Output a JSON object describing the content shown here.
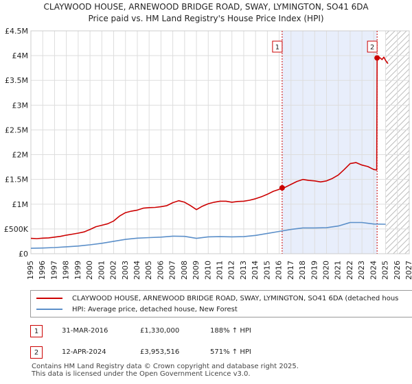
{
  "title_line1": "CLAYWOOD HOUSE, ARNEWOOD BRIDGE ROAD, SWAY, LYMINGTON, SO41 6DA",
  "title_line2": "Price paid vs. HM Land Registry's House Price Index (HPI)",
  "colors": {
    "property_line": "#cc0000",
    "hpi_line": "#5b8fc9",
    "shade": "#e8eefb",
    "grid": "#dddddd"
  },
  "legend": {
    "property_label": "CLAYWOOD HOUSE, ARNEWOOD BRIDGE ROAD, SWAY, LYMINGTON, SO41 6DA (detached hous",
    "hpi_label": "HPI: Average price, detached house, New Forest"
  },
  "transactions": [
    {
      "num": "1",
      "date": "31-MAR-2016",
      "price": "£1,330,000",
      "hpi": "188% ↑ HPI"
    },
    {
      "num": "2",
      "date": "12-APR-2024",
      "price": "£3,953,516",
      "hpi": "571% ↑ HPI"
    }
  ],
  "footer_line1": "Contains HM Land Registry data © Crown copyright and database right 2025.",
  "footer_line2": "This data is licensed under the Open Government Licence v3.0.",
  "chart_data": {
    "type": "line",
    "title": "CLAYWOOD HOUSE, ARNEWOOD BRIDGE ROAD, SWAY, LYMINGTON, SO41 6DA",
    "subtitle": "Price paid vs. HM Land Registry's House Price Index (HPI)",
    "xlabel": "",
    "ylabel": "",
    "xlim": [
      1995,
      2027
    ],
    "ylim": [
      0,
      4500000
    ],
    "x_ticks": [
      1995,
      1996,
      1997,
      1998,
      1999,
      2000,
      2001,
      2002,
      2003,
      2004,
      2005,
      2006,
      2007,
      2008,
      2009,
      2010,
      2011,
      2012,
      2013,
      2014,
      2015,
      2016,
      2017,
      2018,
      2019,
      2020,
      2021,
      2022,
      2023,
      2024,
      2025,
      2026,
      2027
    ],
    "y_ticks": [
      {
        "value": 0,
        "label": "£0"
      },
      {
        "value": 500000,
        "label": "£500K"
      },
      {
        "value": 1000000,
        "label": "£1M"
      },
      {
        "value": 1500000,
        "label": "£1.5M"
      },
      {
        "value": 2000000,
        "label": "£2M"
      },
      {
        "value": 2500000,
        "label": "£2.5M"
      },
      {
        "value": 3000000,
        "label": "£3M"
      },
      {
        "value": 3500000,
        "label": "£3.5M"
      },
      {
        "value": 4000000,
        "label": "£4M"
      },
      {
        "value": 4500000,
        "label": "£4.5M"
      }
    ],
    "grid": true,
    "legend_position": "below",
    "shaded_range": [
      2016.25,
      2024.28
    ],
    "future_hatch_from": 2025.0,
    "markers": [
      {
        "label": "1",
        "x": 2016.25,
        "y": 1330000
      },
      {
        "label": "2",
        "x": 2024.28,
        "y": 3953516
      }
    ],
    "series": [
      {
        "name": "CLAYWOOD HOUSE, ARNEWOOD BRIDGE ROAD, SWAY, LYMINGTON, SO41 6DA (detached hous",
        "color": "#cc0000",
        "points": [
          [
            1995.0,
            310000
          ],
          [
            1995.5,
            305000
          ],
          [
            1996.0,
            315000
          ],
          [
            1996.5,
            320000
          ],
          [
            1997.0,
            335000
          ],
          [
            1997.5,
            350000
          ],
          [
            1998.0,
            375000
          ],
          [
            1998.5,
            395000
          ],
          [
            1999.0,
            415000
          ],
          [
            1999.5,
            440000
          ],
          [
            2000.0,
            490000
          ],
          [
            2000.5,
            545000
          ],
          [
            2001.0,
            575000
          ],
          [
            2001.5,
            605000
          ],
          [
            2002.0,
            660000
          ],
          [
            2002.5,
            760000
          ],
          [
            2003.0,
            830000
          ],
          [
            2003.5,
            860000
          ],
          [
            2004.0,
            880000
          ],
          [
            2004.5,
            920000
          ],
          [
            2005.0,
            930000
          ],
          [
            2005.5,
            935000
          ],
          [
            2006.0,
            950000
          ],
          [
            2006.5,
            970000
          ],
          [
            2007.0,
            1030000
          ],
          [
            2007.5,
            1070000
          ],
          [
            2008.0,
            1040000
          ],
          [
            2008.5,
            970000
          ],
          [
            2009.0,
            890000
          ],
          [
            2009.5,
            960000
          ],
          [
            2010.0,
            1010000
          ],
          [
            2010.5,
            1040000
          ],
          [
            2011.0,
            1060000
          ],
          [
            2011.5,
            1060000
          ],
          [
            2012.0,
            1040000
          ],
          [
            2012.5,
            1055000
          ],
          [
            2013.0,
            1060000
          ],
          [
            2013.5,
            1080000
          ],
          [
            2014.0,
            1110000
          ],
          [
            2014.5,
            1150000
          ],
          [
            2015.0,
            1200000
          ],
          [
            2015.5,
            1260000
          ],
          [
            2016.0,
            1300000
          ],
          [
            2016.25,
            1330000
          ],
          [
            2016.5,
            1340000
          ],
          [
            2017.0,
            1400000
          ],
          [
            2017.5,
            1460000
          ],
          [
            2018.0,
            1500000
          ],
          [
            2018.5,
            1480000
          ],
          [
            2019.0,
            1470000
          ],
          [
            2019.5,
            1450000
          ],
          [
            2020.0,
            1470000
          ],
          [
            2020.5,
            1520000
          ],
          [
            2021.0,
            1590000
          ],
          [
            2021.5,
            1700000
          ],
          [
            2022.0,
            1820000
          ],
          [
            2022.5,
            1840000
          ],
          [
            2023.0,
            1790000
          ],
          [
            2023.5,
            1760000
          ],
          [
            2024.0,
            1700000
          ],
          [
            2024.25,
            1690000
          ],
          [
            2024.28,
            3953516
          ],
          [
            2024.5,
            3960000
          ],
          [
            2024.7,
            3920000
          ],
          [
            2024.85,
            3970000
          ],
          [
            2025.0,
            3900000
          ],
          [
            2025.2,
            3840000
          ]
        ]
      },
      {
        "name": "HPI: Average price, detached house, New Forest",
        "color": "#5b8fc9",
        "points": [
          [
            1995.0,
            110000
          ],
          [
            1996.0,
            115000
          ],
          [
            1997.0,
            125000
          ],
          [
            1998.0,
            140000
          ],
          [
            1999.0,
            155000
          ],
          [
            2000.0,
            180000
          ],
          [
            2001.0,
            210000
          ],
          [
            2002.0,
            250000
          ],
          [
            2003.0,
            290000
          ],
          [
            2004.0,
            315000
          ],
          [
            2005.0,
            325000
          ],
          [
            2006.0,
            335000
          ],
          [
            2007.0,
            355000
          ],
          [
            2008.0,
            350000
          ],
          [
            2009.0,
            310000
          ],
          [
            2010.0,
            340000
          ],
          [
            2011.0,
            345000
          ],
          [
            2012.0,
            340000
          ],
          [
            2013.0,
            345000
          ],
          [
            2014.0,
            370000
          ],
          [
            2015.0,
            410000
          ],
          [
            2016.0,
            450000
          ],
          [
            2017.0,
            490000
          ],
          [
            2018.0,
            520000
          ],
          [
            2019.0,
            520000
          ],
          [
            2020.0,
            525000
          ],
          [
            2021.0,
            560000
          ],
          [
            2022.0,
            630000
          ],
          [
            2023.0,
            630000
          ],
          [
            2024.0,
            600000
          ],
          [
            2025.0,
            595000
          ]
        ]
      }
    ]
  }
}
